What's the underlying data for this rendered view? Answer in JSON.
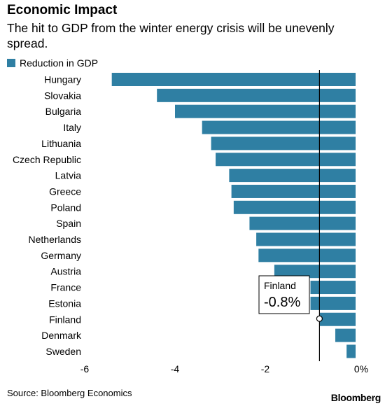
{
  "header": {
    "title": "Economic Impact",
    "subtitle": "The hit to GDP from the winter energy crisis will be unevenly spread."
  },
  "legend": {
    "label": "Reduction in GDP"
  },
  "footer": {
    "source": "Source: Bloomberg Economics",
    "brand": "Bloomberg"
  },
  "annotation": {
    "label": "Finland",
    "value": "-0.8%"
  },
  "colors": {
    "bar": "#2f7fa3",
    "text": "#000000"
  },
  "chart_data": {
    "type": "bar",
    "orientation": "horizontal",
    "categories": [
      "Hungary",
      "Slovakia",
      "Bulgaria",
      "Italy",
      "Lithuania",
      "Czech Republic",
      "Latvia",
      "Greece",
      "Poland",
      "Spain",
      "Netherlands",
      "Germany",
      "Austria",
      "France",
      "Estonia",
      "Finland",
      "Denmark",
      "Sweden"
    ],
    "series": [
      {
        "name": "Reduction in GDP",
        "values": [
          -5.4,
          -4.4,
          -4.0,
          -3.4,
          -3.2,
          -3.1,
          -2.8,
          -2.75,
          -2.7,
          -2.35,
          -2.2,
          -2.15,
          -1.8,
          -1.0,
          -1.0,
          -0.8,
          -0.45,
          -0.2
        ]
      }
    ],
    "xlim": [
      -6,
      0
    ],
    "xticks": [
      -6,
      -4,
      -2,
      0
    ],
    "xtick_labels": [
      "-6",
      "-4",
      "-2",
      "0%"
    ],
    "reference_line_value": -0.8,
    "grid": false
  }
}
